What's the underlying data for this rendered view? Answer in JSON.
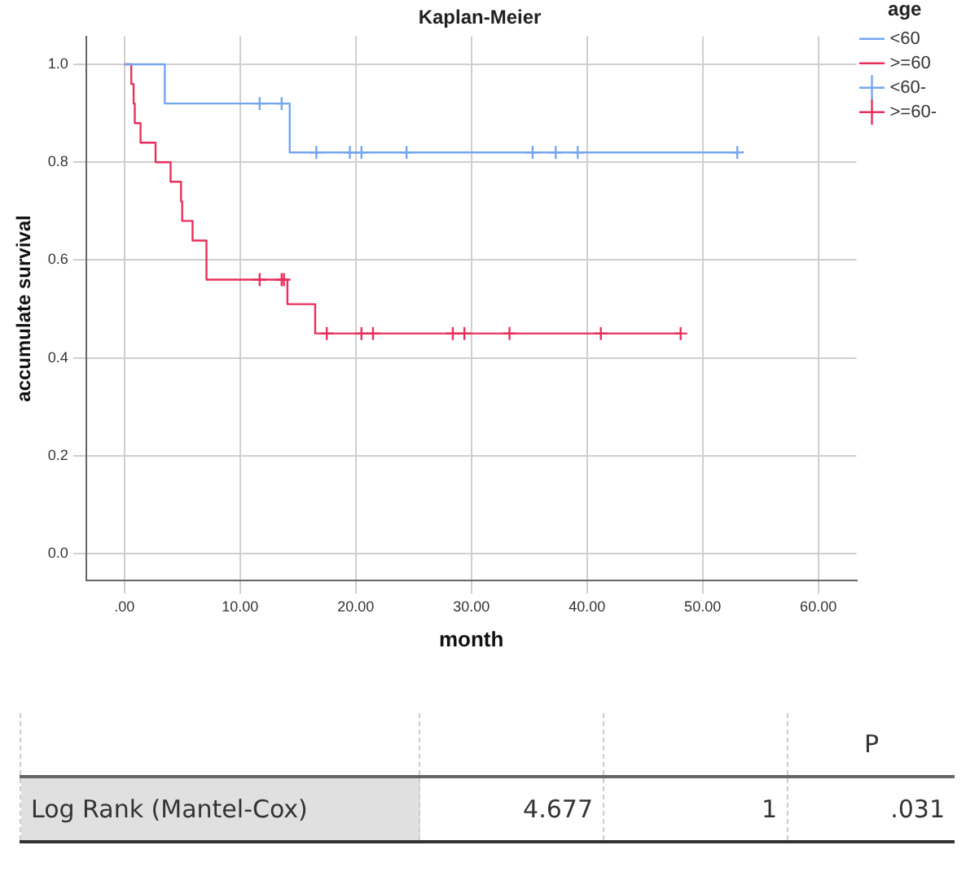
{
  "chart_data": {
    "type": "step",
    "title": "Kaplan-Meier",
    "xlabel": "month",
    "ylabel": "accumulate survival",
    "legend_title": "age",
    "legend": "top right",
    "grid": true,
    "xlim": [
      -3.3,
      63.3
    ],
    "ylim": [
      -0.055,
      1.057
    ],
    "xticks": [
      {
        "value": 0,
        "label": ".00"
      },
      {
        "value": 10,
        "label": "10.00"
      },
      {
        "value": 20,
        "label": "20.00"
      },
      {
        "value": 30,
        "label": "30.00"
      },
      {
        "value": 40,
        "label": "40.00"
      },
      {
        "value": 50,
        "label": "50.00"
      },
      {
        "value": 60,
        "label": "60.00"
      }
    ],
    "yticks": [
      {
        "value": 0,
        "label": "0.0"
      },
      {
        "value": 0.2,
        "label": "0.2"
      },
      {
        "value": 0.4,
        "label": "0.4"
      },
      {
        "value": 0.6,
        "label": "0.6"
      },
      {
        "value": 0.8,
        "label": "0.8"
      },
      {
        "value": 1,
        "label": "1.0"
      }
    ],
    "series": [
      {
        "name": "<60",
        "color": "#74a6f0",
        "x": [
          0,
          3.5,
          14.3,
          53.0
        ],
        "values": [
          1,
          0.92,
          0.82,
          0.82
        ]
      },
      {
        "name": ">=60",
        "color": "#e8305c",
        "x": [
          0,
          0.6,
          0.8,
          0.9,
          1.4,
          2.7,
          4.0,
          4.9,
          5.0,
          5.9,
          7.1,
          14.1,
          16.5,
          48.1
        ],
        "values": [
          1,
          0.96,
          0.92,
          0.88,
          0.84,
          0.8,
          0.76,
          0.72,
          0.68,
          0.64,
          0.56,
          0.51,
          0.45,
          0.45
        ]
      },
      {
        "name": "<60-",
        "type": "scatter",
        "marker": "cross",
        "color": "#74a6f0",
        "x": [
          11.7,
          13.6,
          16.6,
          19.5,
          20.5,
          24.4,
          35.3,
          37.3,
          39.2,
          53.0
        ],
        "values": [
          0.92,
          0.92,
          0.82,
          0.82,
          0.82,
          0.82,
          0.82,
          0.82,
          0.82,
          0.82
        ]
      },
      {
        "name": ">=60-",
        "type": "scatter",
        "marker": "cross",
        "color": "#e8305c",
        "x": [
          11.7,
          13.6,
          13.8,
          17.5,
          20.5,
          21.5,
          28.4,
          29.4,
          33.3,
          41.2,
          48.1
        ],
        "values": [
          0.56,
          0.56,
          0.56,
          0.45,
          0.45,
          0.45,
          0.45,
          0.45,
          0.45,
          0.45,
          0.45
        ]
      }
    ],
    "annotations": [
      "P",
      "Log Rank (Mantel-Cox)",
      "4.677",
      "1",
      ".031"
    ]
  }
}
